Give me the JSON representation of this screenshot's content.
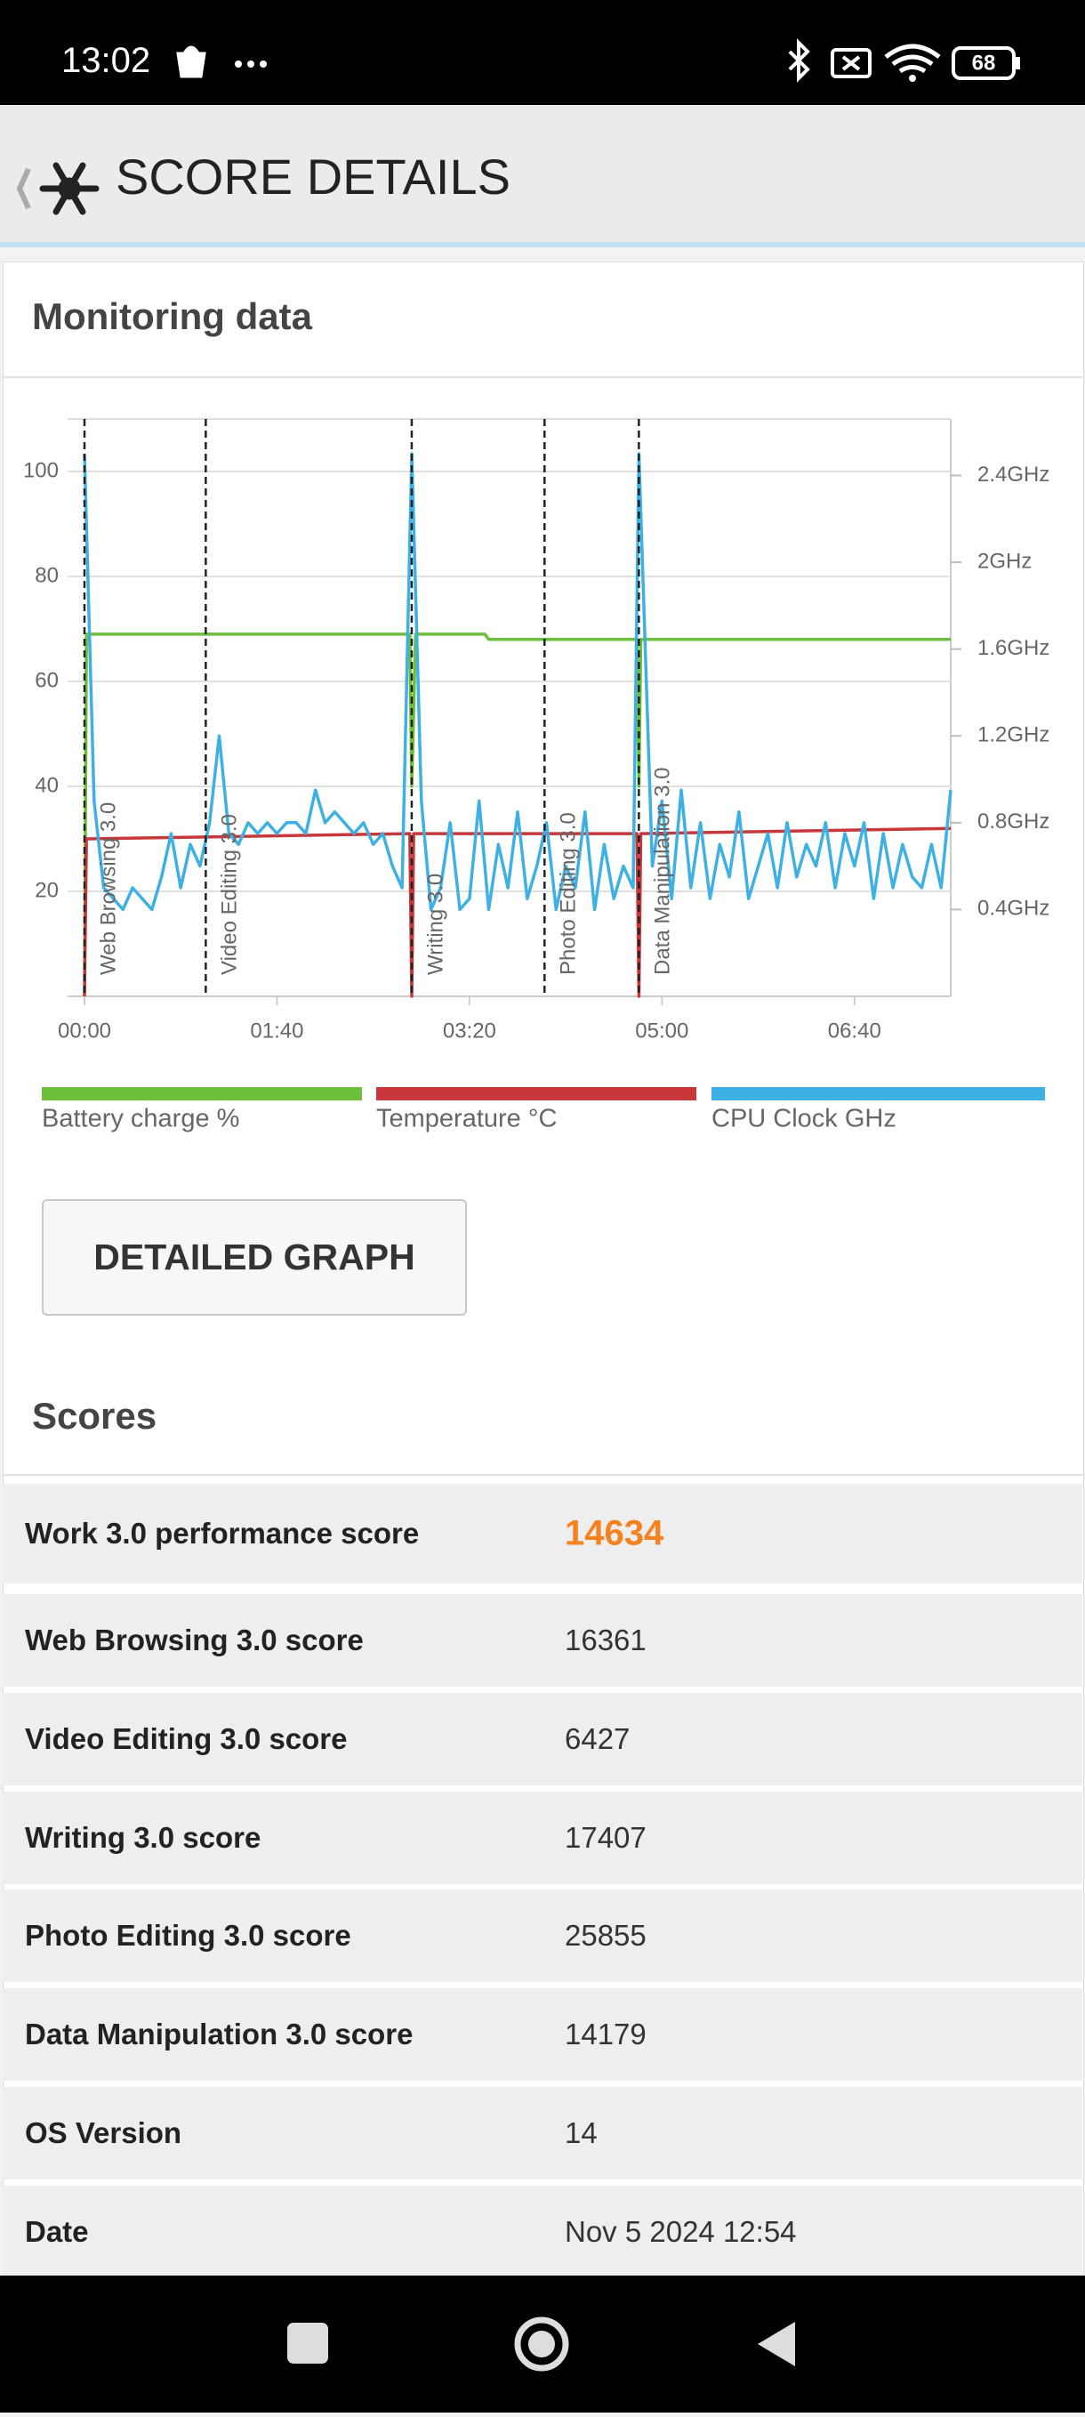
{
  "status_bar": {
    "time": "13:02",
    "battery": "68"
  },
  "header": {
    "title": "SCORE DETAILS"
  },
  "monitoring": {
    "title": "Monitoring data"
  },
  "chart_data": {
    "type": "line",
    "xlim": [
      0,
      450
    ],
    "xticks": [
      {
        "value": 0,
        "label": "00:00"
      },
      {
        "value": 100,
        "label": "01:40"
      },
      {
        "value": 200,
        "label": "03:20"
      },
      {
        "value": 300,
        "label": "05:00"
      },
      {
        "value": 400,
        "label": "06:40"
      }
    ],
    "ylim": [
      0,
      110
    ],
    "yticks": [
      20,
      40,
      60,
      80,
      100
    ],
    "y2lim": [
      0,
      2.66
    ],
    "y2ticks": [
      {
        "value": 0.4,
        "label": "0.4GHz"
      },
      {
        "value": 0.8,
        "label": "0.8GHz"
      },
      {
        "value": 1.2,
        "label": "1.2GHz"
      },
      {
        "value": 1.6,
        "label": "1.6GHz"
      },
      {
        "value": 2,
        "label": "2GHz"
      },
      {
        "value": 2.4,
        "label": "2.4GHz"
      }
    ],
    "grid": true,
    "annotations": [
      {
        "label": "Web Browsing 3.0",
        "x": 0
      },
      {
        "label": "Video Editing 3.0",
        "x": 63
      },
      {
        "label": "Writing 3.0",
        "x": 170
      },
      {
        "label": "Photo Editing 3.0",
        "x": 239
      },
      {
        "label": "Data Manipulation 3.0",
        "x": 288
      }
    ],
    "series": [
      {
        "name": "Battery charge %",
        "color": "#6cbf3a",
        "x": [
          0,
          1,
          169,
          170,
          172,
          208,
          210,
          287,
          288,
          289,
          450
        ],
        "values": [
          0,
          69,
          69,
          40,
          69,
          69,
          68,
          68,
          40,
          68,
          68
        ]
      },
      {
        "name": "Temperature °C",
        "color": "#c8383a",
        "x": [
          0,
          1,
          169,
          170,
          171,
          287,
          288,
          289,
          450
        ],
        "values": [
          0,
          30,
          31,
          0,
          31,
          31,
          0,
          31,
          32
        ]
      },
      {
        "name": "CPU Clock GHz",
        "color": "#3fb0e4",
        "axis": "y2",
        "x": [
          0,
          5,
          10,
          15,
          20,
          25,
          30,
          35,
          40,
          45,
          50,
          55,
          60,
          65,
          70,
          75,
          80,
          85,
          90,
          95,
          100,
          105,
          110,
          115,
          120,
          125,
          130,
          135,
          140,
          145,
          150,
          155,
          160,
          165,
          170,
          175,
          180,
          185,
          190,
          195,
          200,
          205,
          210,
          215,
          220,
          225,
          230,
          235,
          240,
          245,
          250,
          255,
          260,
          265,
          270,
          275,
          280,
          285,
          288,
          295,
          300,
          305,
          310,
          315,
          320,
          325,
          330,
          335,
          340,
          345,
          350,
          355,
          360,
          365,
          370,
          375,
          380,
          385,
          390,
          395,
          400,
          405,
          410,
          415,
          420,
          425,
          430,
          435,
          440,
          445,
          450
        ],
        "values": [
          2.5,
          0.9,
          0.5,
          0.45,
          0.4,
          0.5,
          0.45,
          0.4,
          0.55,
          0.75,
          0.5,
          0.7,
          0.6,
          0.8,
          1.2,
          0.75,
          0.7,
          0.8,
          0.75,
          0.8,
          0.75,
          0.8,
          0.8,
          0.75,
          0.95,
          0.8,
          0.85,
          0.8,
          0.75,
          0.8,
          0.7,
          0.75,
          0.6,
          0.5,
          2.5,
          0.9,
          0.4,
          0.5,
          0.8,
          0.4,
          0.45,
          0.9,
          0.4,
          0.7,
          0.5,
          0.85,
          0.45,
          0.6,
          0.8,
          0.4,
          0.6,
          0.5,
          0.85,
          0.4,
          0.7,
          0.45,
          0.6,
          0.5,
          2.5,
          0.6,
          0.9,
          0.45,
          0.95,
          0.5,
          0.8,
          0.45,
          0.7,
          0.55,
          0.85,
          0.45,
          0.6,
          0.75,
          0.5,
          0.8,
          0.55,
          0.7,
          0.6,
          0.8,
          0.5,
          0.75,
          0.6,
          0.8,
          0.45,
          0.75,
          0.5,
          0.7,
          0.55,
          0.5,
          0.7,
          0.5,
          0.95
        ]
      }
    ]
  },
  "button": {
    "label": "DETAILED GRAPH"
  },
  "scores": {
    "title": "Scores",
    "rows": [
      [
        "Work 3.0 performance score",
        "14634"
      ],
      [
        "Web Browsing 3.0 score",
        "16361"
      ],
      [
        "Video Editing 3.0 score",
        "6427"
      ],
      [
        "Writing 3.0 score",
        "17407"
      ],
      [
        "Photo Editing 3.0 score",
        "25855"
      ],
      [
        "Data Manipulation 3.0 score",
        "14179"
      ],
      [
        "OS Version",
        "14"
      ],
      [
        "Date",
        "Nov 5 2024 12:54"
      ]
    ]
  }
}
